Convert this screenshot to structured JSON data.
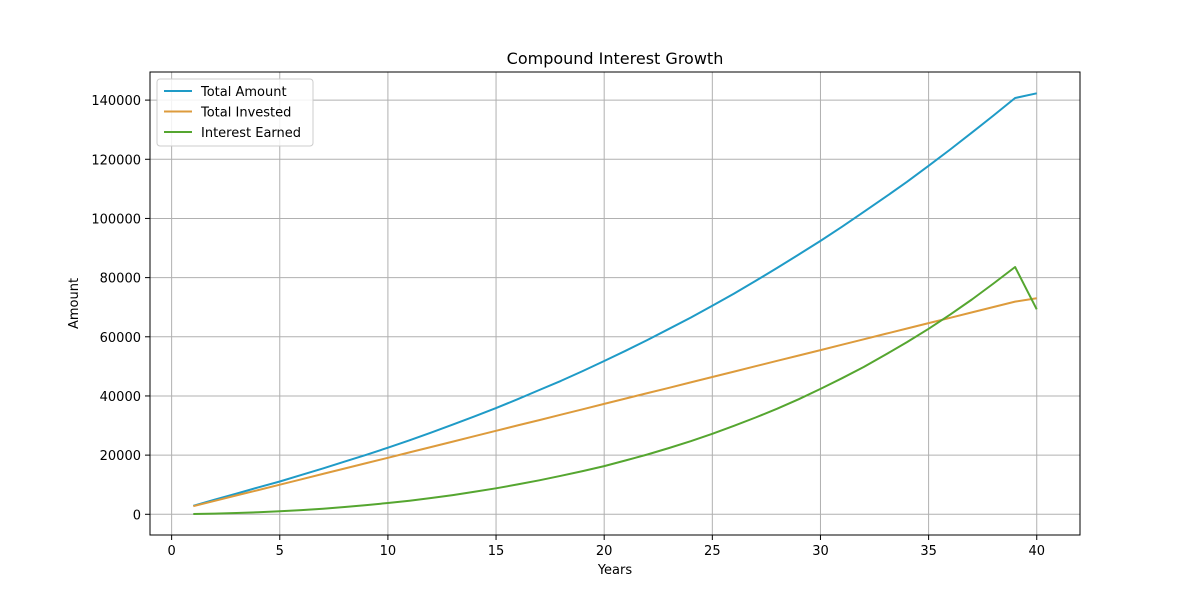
{
  "chart_data": {
    "type": "line",
    "title": "Compound Interest Growth",
    "xlabel": "Years",
    "ylabel": "Amount",
    "xlim": [
      -1,
      42
    ],
    "ylim": [
      -7000,
      149500
    ],
    "xticks": [
      0,
      5,
      10,
      15,
      20,
      25,
      30,
      35,
      40
    ],
    "yticks": [
      0,
      20000,
      40000,
      60000,
      80000,
      100000,
      120000,
      140000
    ],
    "grid": true,
    "legend": "top-left",
    "x": [
      1,
      2,
      3,
      4,
      5,
      6,
      7,
      8,
      9,
      10,
      11,
      12,
      13,
      14,
      15,
      16,
      17,
      18,
      19,
      20,
      21,
      22,
      23,
      24,
      25,
      26,
      27,
      28,
      29,
      30,
      31,
      32,
      33,
      34,
      35,
      36,
      37,
      38,
      39,
      40
    ],
    "series": [
      {
        "name": "Total Amount",
        "color": "#1f9bc7",
        "values": [
          2870,
          4950,
          7000,
          9100,
          11100,
          13300,
          15500,
          17800,
          20100,
          22500,
          25000,
          27600,
          30300,
          33100,
          35900,
          38900,
          42000,
          45100,
          48400,
          51800,
          55300,
          58900,
          62700,
          66500,
          70500,
          74600,
          78900,
          83300,
          87800,
          92400,
          97200,
          102200,
          107200,
          112400,
          117800,
          123300,
          129000,
          134800,
          140700,
          142300
        ]
      },
      {
        "name": "Total Invested",
        "color": "#dd9b3c",
        "values": [
          2730,
          4550,
          6370,
          8190,
          10010,
          11830,
          13650,
          15470,
          17290,
          19110,
          20930,
          22750,
          24570,
          26390,
          28210,
          30030,
          31850,
          33670,
          35490,
          37310,
          39130,
          40950,
          42770,
          44590,
          46410,
          48230,
          50050,
          51870,
          53690,
          55510,
          57330,
          59150,
          60970,
          62790,
          64610,
          66430,
          68250,
          70070,
          71890,
          73000
        ]
      },
      {
        "name": "Interest Earned",
        "color": "#55a630",
        "values": [
          100,
          250,
          450,
          700,
          1000,
          1400,
          1900,
          2450,
          3100,
          3800,
          4600,
          5500,
          6500,
          7600,
          8800,
          10100,
          11500,
          13000,
          14600,
          16300,
          18200,
          20200,
          22400,
          24700,
          27200,
          29900,
          32700,
          35700,
          38900,
          42400,
          46000,
          49800,
          53900,
          58200,
          62700,
          67500,
          72600,
          78000,
          83600,
          69300
        ]
      }
    ]
  }
}
